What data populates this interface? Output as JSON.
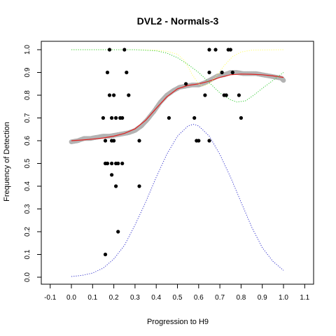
{
  "chart_data": {
    "type": "scatter",
    "title": "DVL2 - Normals-3",
    "xlabel": "Progression to H9",
    "ylabel": "Frequency of Detection",
    "xlim": [
      -0.1,
      1.1
    ],
    "ylim": [
      0.0,
      1.0
    ],
    "x_ticks": [
      "-0.1",
      "0.0",
      "0.1",
      "0.2",
      "0.3",
      "0.4",
      "0.5",
      "0.6",
      "0.7",
      "0.8",
      "0.9",
      "1.0",
      "1.1"
    ],
    "y_ticks": [
      "0.0",
      "0.1",
      "0.2",
      "0.3",
      "0.4",
      "0.5",
      "0.6",
      "0.7",
      "0.8",
      "0.9",
      "1.0"
    ],
    "grid": false,
    "series": [
      {
        "kind": "points",
        "color": "#000000",
        "points": [
          [
            0.15,
            0.7
          ],
          [
            0.16,
            0.6
          ],
          [
            0.16,
            0.5
          ],
          [
            0.16,
            0.1
          ],
          [
            0.17,
            0.9
          ],
          [
            0.17,
            0.5
          ],
          [
            0.18,
            1.0
          ],
          [
            0.18,
            0.8
          ],
          [
            0.19,
            0.7
          ],
          [
            0.19,
            0.6
          ],
          [
            0.19,
            0.5
          ],
          [
            0.19,
            0.45
          ],
          [
            0.2,
            0.8
          ],
          [
            0.2,
            0.6
          ],
          [
            0.21,
            0.7
          ],
          [
            0.21,
            0.5
          ],
          [
            0.21,
            0.4
          ],
          [
            0.22,
            0.5
          ],
          [
            0.22,
            0.2
          ],
          [
            0.23,
            0.7
          ],
          [
            0.24,
            0.7
          ],
          [
            0.24,
            0.5
          ],
          [
            0.25,
            1.0
          ],
          [
            0.26,
            0.9
          ],
          [
            0.27,
            0.8
          ],
          [
            0.32,
            0.6
          ],
          [
            0.32,
            0.4
          ],
          [
            0.46,
            0.7
          ],
          [
            0.54,
            0.85
          ],
          [
            0.58,
            0.7
          ],
          [
            0.59,
            0.6
          ],
          [
            0.6,
            0.6
          ],
          [
            0.63,
            0.8
          ],
          [
            0.65,
            0.6
          ],
          [
            0.65,
            1.0
          ],
          [
            0.65,
            0.9
          ],
          [
            0.68,
            1.0
          ],
          [
            0.71,
            0.9
          ],
          [
            0.72,
            0.8
          ],
          [
            0.73,
            0.8
          ],
          [
            0.74,
            1.0
          ],
          [
            0.75,
            1.0
          ],
          [
            0.76,
            0.9
          ],
          [
            0.79,
            0.8
          ],
          [
            0.8,
            0.7
          ]
        ]
      },
      {
        "kind": "band",
        "color": "#b3b3b3",
        "points": [
          [
            0.0,
            0.595
          ],
          [
            0.03,
            0.6
          ],
          [
            0.06,
            0.61
          ],
          [
            0.09,
            0.61
          ],
          [
            0.12,
            0.615
          ],
          [
            0.15,
            0.62
          ],
          [
            0.18,
            0.62
          ],
          [
            0.21,
            0.625
          ],
          [
            0.24,
            0.63
          ],
          [
            0.27,
            0.635
          ],
          [
            0.3,
            0.645
          ],
          [
            0.33,
            0.665
          ],
          [
            0.36,
            0.695
          ],
          [
            0.39,
            0.73
          ],
          [
            0.42,
            0.77
          ],
          [
            0.45,
            0.8
          ],
          [
            0.48,
            0.82
          ],
          [
            0.51,
            0.835
          ],
          [
            0.54,
            0.84
          ],
          [
            0.57,
            0.845
          ],
          [
            0.6,
            0.845
          ],
          [
            0.63,
            0.855
          ],
          [
            0.66,
            0.87
          ],
          [
            0.69,
            0.885
          ],
          [
            0.72,
            0.89
          ],
          [
            0.75,
            0.9
          ],
          [
            0.78,
            0.9
          ],
          [
            0.81,
            0.895
          ],
          [
            0.84,
            0.895
          ],
          [
            0.87,
            0.895
          ],
          [
            0.9,
            0.89
          ],
          [
            0.93,
            0.885
          ],
          [
            0.96,
            0.88
          ],
          [
            0.99,
            0.875
          ],
          [
            1.0,
            0.865
          ]
        ]
      },
      {
        "kind": "line",
        "color": "#e02020",
        "style": "solid",
        "points": [
          [
            0.0,
            0.6
          ],
          [
            0.05,
            0.603
          ],
          [
            0.1,
            0.607
          ],
          [
            0.15,
            0.612
          ],
          [
            0.2,
            0.62
          ],
          [
            0.25,
            0.632
          ],
          [
            0.3,
            0.652
          ],
          [
            0.35,
            0.69
          ],
          [
            0.4,
            0.742
          ],
          [
            0.45,
            0.793
          ],
          [
            0.5,
            0.828
          ],
          [
            0.55,
            0.843
          ],
          [
            0.6,
            0.85
          ],
          [
            0.65,
            0.862
          ],
          [
            0.7,
            0.878
          ],
          [
            0.75,
            0.89
          ],
          [
            0.8,
            0.893
          ],
          [
            0.85,
            0.892
          ],
          [
            0.9,
            0.89
          ],
          [
            0.95,
            0.885
          ],
          [
            1.0,
            0.878
          ]
        ]
      },
      {
        "kind": "line",
        "color": "#ffff66",
        "style": "dotted",
        "points": [
          [
            0.0,
            1.0
          ],
          [
            0.3,
            1.0
          ],
          [
            0.4,
            0.998
          ],
          [
            0.45,
            0.993
          ],
          [
            0.5,
            0.98
          ],
          [
            0.53,
            0.955
          ],
          [
            0.55,
            0.925
          ],
          [
            0.57,
            0.89
          ],
          [
            0.6,
            0.85
          ],
          [
            0.62,
            0.84
          ],
          [
            0.65,
            0.85
          ],
          [
            0.68,
            0.88
          ],
          [
            0.72,
            0.93
          ],
          [
            0.76,
            0.97
          ],
          [
            0.8,
            0.99
          ],
          [
            0.85,
            0.998
          ],
          [
            1.0,
            1.0
          ]
        ]
      },
      {
        "kind": "line",
        "color": "#33cc33",
        "style": "dotted",
        "points": [
          [
            0.0,
            1.0
          ],
          [
            0.3,
            1.0
          ],
          [
            0.4,
            0.995
          ],
          [
            0.45,
            0.985
          ],
          [
            0.5,
            0.965
          ],
          [
            0.55,
            0.935
          ],
          [
            0.6,
            0.9
          ],
          [
            0.65,
            0.855
          ],
          [
            0.7,
            0.81
          ],
          [
            0.75,
            0.78
          ],
          [
            0.78,
            0.77
          ],
          [
            0.82,
            0.775
          ],
          [
            0.86,
            0.8
          ],
          [
            0.9,
            0.83
          ],
          [
            0.95,
            0.865
          ],
          [
            1.0,
            0.9
          ]
        ]
      },
      {
        "kind": "line",
        "color": "#3333cc",
        "style": "dotted",
        "points": [
          [
            0.0,
            0.003
          ],
          [
            0.05,
            0.008
          ],
          [
            0.1,
            0.018
          ],
          [
            0.15,
            0.04
          ],
          [
            0.2,
            0.08
          ],
          [
            0.25,
            0.14
          ],
          [
            0.3,
            0.23
          ],
          [
            0.35,
            0.33
          ],
          [
            0.4,
            0.44
          ],
          [
            0.45,
            0.54
          ],
          [
            0.5,
            0.62
          ],
          [
            0.55,
            0.665
          ],
          [
            0.575,
            0.672
          ],
          [
            0.6,
            0.665
          ],
          [
            0.65,
            0.62
          ],
          [
            0.7,
            0.54
          ],
          [
            0.75,
            0.44
          ],
          [
            0.8,
            0.33
          ],
          [
            0.85,
            0.22
          ],
          [
            0.9,
            0.13
          ],
          [
            0.95,
            0.07
          ],
          [
            1.0,
            0.03
          ]
        ]
      }
    ]
  }
}
